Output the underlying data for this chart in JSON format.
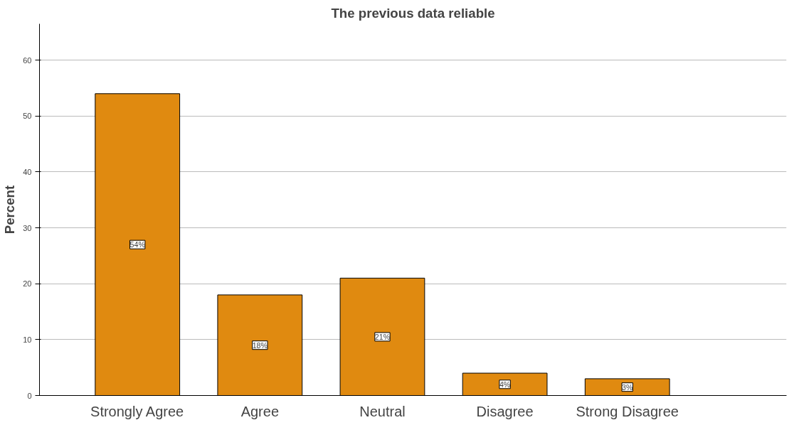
{
  "chart_data": {
    "type": "bar",
    "title": "The previous data reliable",
    "ylabel": "Percent",
    "categories": [
      "Strongly Agree",
      "Agree",
      "Neutral",
      "Disagree",
      "Strong Disagree"
    ],
    "values": [
      54,
      18,
      21,
      4,
      3
    ],
    "value_labels": [
      "54%",
      "18%",
      "21%",
      "4%",
      "3%"
    ],
    "color": "#e08a10",
    "ylim": [
      0,
      66.5
    ],
    "yticks": [
      0,
      10,
      20,
      30,
      40,
      50,
      60
    ],
    "grid": "y"
  }
}
